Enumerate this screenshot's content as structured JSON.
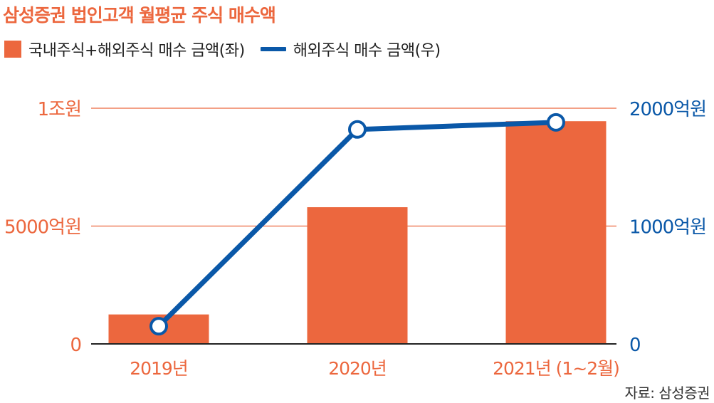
{
  "title": "삼성증권 법인고객 월평균 주식 매수액",
  "source": "자료: 삼성증권",
  "colors": {
    "bar": "#ec673e",
    "line": "#0a58a8",
    "left_axis": "#ec673e",
    "right_axis": "#0a58a8",
    "grid": "#ec673e",
    "baseline": "#222222"
  },
  "chart_data": {
    "type": "bar",
    "categories": [
      "2019년",
      "2020년",
      "2021년 (1~2월)"
    ],
    "series": [
      {
        "name": "국내주식+해외주식 매수 금액(좌)",
        "type": "bar",
        "axis": "left",
        "values": [
          1250,
          5800,
          9450
        ]
      },
      {
        "name": "해외주식 매수 금액(우)",
        "type": "line",
        "axis": "right",
        "values": [
          150,
          1820,
          1880
        ]
      }
    ],
    "left_axis": {
      "ylim": [
        0,
        10000
      ],
      "ticks": [
        0,
        5000,
        10000
      ],
      "tick_labels": [
        "0",
        "5000억원",
        "1조원"
      ]
    },
    "right_axis": {
      "ylim": [
        0,
        2000
      ],
      "ticks": [
        0,
        1000,
        2000
      ],
      "tick_labels": [
        "0",
        "1000억원",
        "2000억원"
      ]
    },
    "legend": "top-left",
    "grid": true
  }
}
